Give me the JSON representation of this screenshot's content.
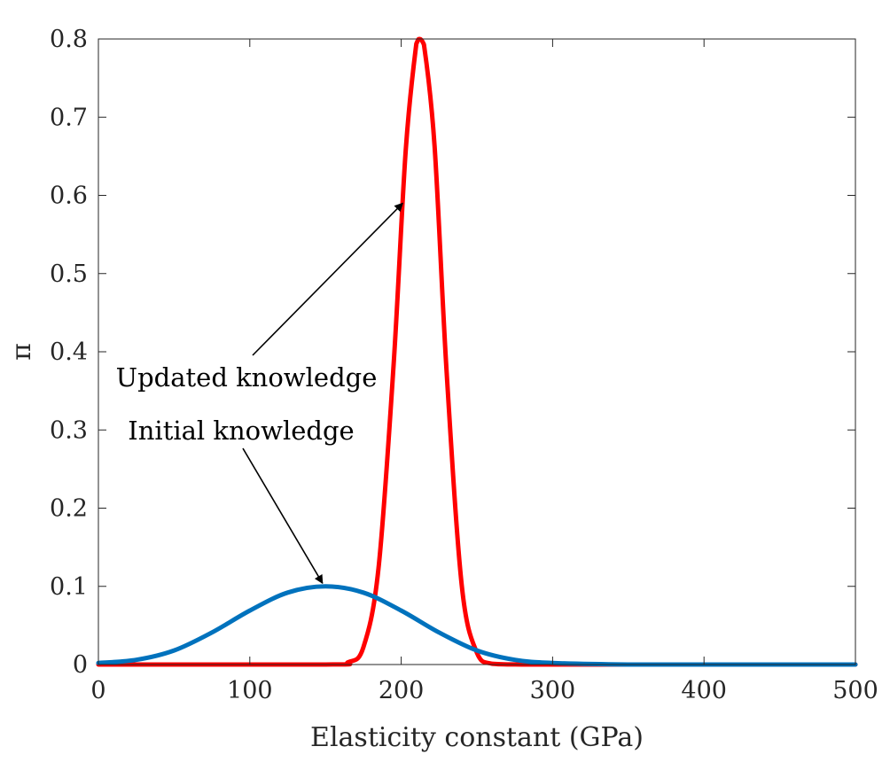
{
  "chart_data": {
    "type": "line",
    "title": "",
    "xlabel": "Elasticity constant (GPa)",
    "ylabel": "π",
    "xlim": [
      0,
      500
    ],
    "ylim": [
      0,
      0.8
    ],
    "xticks": [
      0,
      100,
      200,
      300,
      400,
      500
    ],
    "xtick_labels": [
      "0",
      "100",
      "200",
      "300",
      "400",
      "500"
    ],
    "yticks": [
      0,
      0.1,
      0.2,
      0.3,
      0.4,
      0.5,
      0.6,
      0.7,
      0.8
    ],
    "ytick_labels": [
      "0",
      "0.1",
      "0.2",
      "0.3",
      "0.4",
      "0.5",
      "0.6",
      "0.7",
      "0.8"
    ],
    "grid": false,
    "legend": "none",
    "series": [
      {
        "color": "#0072BD",
        "x": [
          0,
          25,
          50,
          75,
          100,
          125,
          150,
          175,
          200,
          225,
          250,
          275,
          300,
          350,
          400,
          450,
          500
        ],
        "y": [
          0.002,
          0.006,
          0.018,
          0.041,
          0.069,
          0.092,
          0.1,
          0.092,
          0.069,
          0.041,
          0.018,
          0.006,
          0.002,
          0.0,
          0.0,
          0.0,
          0.0
        ]
      },
      {
        "color": "#FF0000",
        "x": [
          0,
          150,
          165,
          175,
          185,
          195,
          203,
          210,
          212,
          215,
          222,
          230,
          240,
          250,
          260,
          280,
          300,
          500
        ],
        "y": [
          0.0,
          0.0,
          0.003,
          0.022,
          0.123,
          0.384,
          0.658,
          0.794,
          0.8,
          0.793,
          0.664,
          0.374,
          0.101,
          0.015,
          0.001,
          0.0,
          0.0,
          0.0
        ]
      }
    ],
    "annotations": [
      {
        "text": "Updated knowledge",
        "arrow_to": [
          201,
          0.59
        ]
      },
      {
        "text": "Initial knowledge",
        "arrow_to": [
          148,
          0.104
        ]
      }
    ]
  }
}
